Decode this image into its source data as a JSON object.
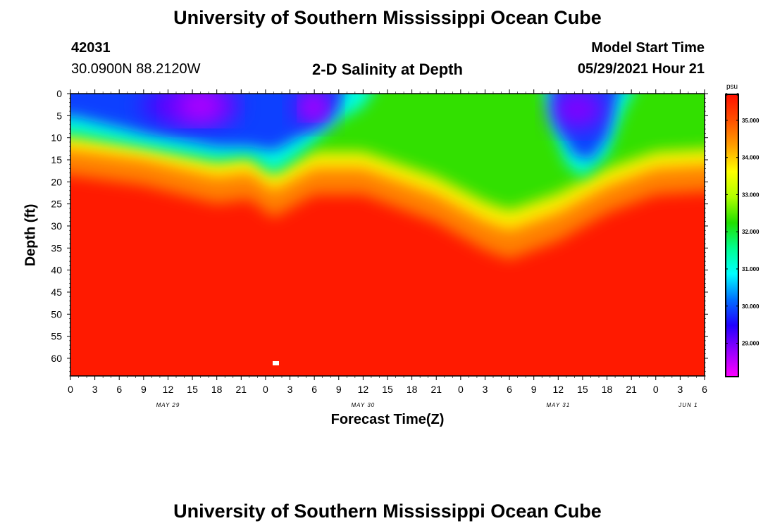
{
  "header": {
    "title_top": "University of Southern Mississippi Ocean Cube",
    "title_bottom": "University of Southern Mississippi Ocean Cube",
    "station_id": "42031",
    "location": "30.0900N  88.2120W",
    "plot_title": "2-D Salinity at Depth",
    "model_start_label": "Model Start Time",
    "model_start_value": "05/29/2021 Hour 21"
  },
  "chart_data": {
    "type": "heatmap",
    "title": "2-D Salinity at Depth",
    "xlabel": "Forecast Time(Z)",
    "ylabel": "Depth (ft)",
    "x_tick_labels": [
      "0",
      "3",
      "6",
      "9",
      "12",
      "15",
      "18",
      "21",
      "0",
      "3",
      "6",
      "9",
      "12",
      "15",
      "18",
      "21",
      "0",
      "3",
      "6",
      "9",
      "12",
      "15",
      "18",
      "21",
      "0",
      "3",
      "6"
    ],
    "x_date_labels": [
      {
        "label": "MAY 29",
        "hours": 12
      },
      {
        "label": "MAY 30",
        "hours": 36
      },
      {
        "label": "MAY 31",
        "hours": 60
      },
      {
        "label": "JUN 1",
        "hours": 76
      }
    ],
    "xlim_hours": [
      0,
      78
    ],
    "y_tick_labels": [
      "0",
      "5",
      "10",
      "15",
      "20",
      "25",
      "30",
      "35",
      "40",
      "45",
      "50",
      "55",
      "60"
    ],
    "ylim_ft": [
      0,
      64
    ],
    "colorbar": {
      "unit": "psu",
      "range": [
        28.1,
        35.7
      ],
      "tick_labels": [
        "35.000",
        "34.000",
        "33.000",
        "32.000",
        "31.000",
        "30.000",
        "29.000"
      ],
      "colors": [
        "#ff00ff",
        "#9600ff",
        "#2000ff",
        "#0070ff",
        "#00ffff",
        "#00ff90",
        "#20e000",
        "#b0ff00",
        "#ffff00",
        "#ffa000",
        "#ff5000",
        "#ff1000"
      ]
    },
    "isohaline_34psu_depth_ft": [
      {
        "hours": 0,
        "depth": 12
      },
      {
        "hours": 9,
        "depth": 15
      },
      {
        "hours": 18,
        "depth": 19
      },
      {
        "hours": 22,
        "depth": 18
      },
      {
        "hours": 25,
        "depth": 22
      },
      {
        "hours": 27,
        "depth": 20
      },
      {
        "hours": 30,
        "depth": 17
      },
      {
        "hours": 36,
        "depth": 17
      },
      {
        "hours": 45,
        "depth": 23
      },
      {
        "hours": 51,
        "depth": 29
      },
      {
        "hours": 54,
        "depth": 31
      },
      {
        "hours": 60,
        "depth": 27
      },
      {
        "hours": 66,
        "depth": 21
      },
      {
        "hours": 72,
        "depth": 17
      },
      {
        "hours": 78,
        "depth": 16
      }
    ],
    "fresh_cores": [
      {
        "hours": 16,
        "depth_ft": 3,
        "min_psu": 28.2
      },
      {
        "hours": 30,
        "depth_ft": 3,
        "min_psu": 28.7
      },
      {
        "hours": 63,
        "depth_ft": 3,
        "min_psu": 29.0
      }
    ]
  }
}
